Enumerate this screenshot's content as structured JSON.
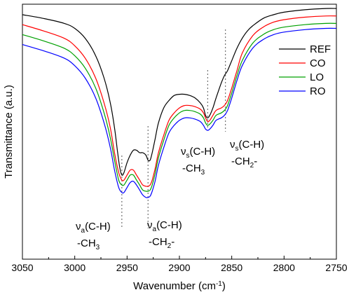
{
  "chart_data": {
    "type": "line",
    "xlabel": "Wavenumber (cm",
    "xlabel_sup": "-1",
    "xlabel_close": ")",
    "ylabel": "Transmittance (a.u.)",
    "xlim": [
      3050,
      2750
    ],
    "x_reversed": true,
    "x_ticks": [
      3050,
      3000,
      2950,
      2900,
      2850,
      2800,
      2750
    ],
    "y_ticks_labeled": false,
    "grid": false,
    "legend_position": "top-right",
    "colors": {
      "REF": "#000000",
      "CO": "#ff0000",
      "LO": "#00a000",
      "RO": "#0000ff"
    },
    "series": [
      {
        "name": "REF",
        "x": [
          3050,
          3030,
          3010,
          3000,
          2990,
          2980,
          2972,
          2966,
          2962,
          2959,
          2957,
          2955,
          2953,
          2950,
          2947,
          2944,
          2941,
          2938,
          2935,
          2932,
          2930,
          2928,
          2926,
          2923,
          2920,
          2915,
          2910,
          2905,
          2900,
          2895,
          2890,
          2885,
          2880,
          2877,
          2875,
          2873,
          2871,
          2868,
          2865,
          2860,
          2857,
          2854,
          2850,
          2845,
          2840,
          2835,
          2830,
          2820,
          2810,
          2800,
          2780,
          2760,
          2750
        ],
        "y": [
          0.955,
          0.94,
          0.92,
          0.9,
          0.86,
          0.79,
          0.7,
          0.6,
          0.5,
          0.4,
          0.34,
          0.31,
          0.32,
          0.36,
          0.39,
          0.41,
          0.41,
          0.4,
          0.4,
          0.39,
          0.37,
          0.37,
          0.4,
          0.46,
          0.52,
          0.58,
          0.61,
          0.63,
          0.635,
          0.635,
          0.63,
          0.62,
          0.6,
          0.58,
          0.55,
          0.54,
          0.55,
          0.58,
          0.62,
          0.68,
          0.71,
          0.73,
          0.77,
          0.82,
          0.86,
          0.89,
          0.91,
          0.94,
          0.955,
          0.965,
          0.975,
          0.98,
          0.98
        ]
      },
      {
        "name": "CO",
        "x": [
          3050,
          3030,
          3010,
          3000,
          2990,
          2980,
          2972,
          2966,
          2962,
          2958,
          2955,
          2953,
          2950,
          2947,
          2944,
          2941,
          2938,
          2935,
          2932,
          2930,
          2928,
          2926,
          2923,
          2920,
          2915,
          2910,
          2905,
          2900,
          2895,
          2890,
          2885,
          2880,
          2877,
          2875,
          2873,
          2871,
          2868,
          2865,
          2860,
          2857,
          2854,
          2850,
          2845,
          2840,
          2830,
          2820,
          2810,
          2800,
          2780,
          2760,
          2750
        ],
        "y": [
          0.915,
          0.89,
          0.86,
          0.83,
          0.78,
          0.7,
          0.6,
          0.5,
          0.4,
          0.32,
          0.29,
          0.29,
          0.31,
          0.33,
          0.33,
          0.31,
          0.29,
          0.27,
          0.265,
          0.265,
          0.27,
          0.29,
          0.34,
          0.4,
          0.47,
          0.53,
          0.56,
          0.58,
          0.59,
          0.59,
          0.585,
          0.575,
          0.56,
          0.54,
          0.525,
          0.53,
          0.55,
          0.57,
          0.58,
          0.59,
          0.61,
          0.66,
          0.73,
          0.8,
          0.87,
          0.905,
          0.925,
          0.935,
          0.945,
          0.95,
          0.95
        ]
      },
      {
        "name": "LO",
        "x": [
          3050,
          3030,
          3010,
          3000,
          2990,
          2980,
          2972,
          2966,
          2962,
          2958,
          2955,
          2953,
          2950,
          2947,
          2944,
          2941,
          2938,
          2935,
          2932,
          2930,
          2928,
          2926,
          2923,
          2920,
          2915,
          2910,
          2905,
          2900,
          2895,
          2890,
          2885,
          2880,
          2877,
          2875,
          2873,
          2871,
          2868,
          2865,
          2860,
          2857,
          2854,
          2850,
          2845,
          2840,
          2830,
          2820,
          2810,
          2800,
          2780,
          2760,
          2750
        ],
        "y": [
          0.875,
          0.85,
          0.82,
          0.79,
          0.74,
          0.66,
          0.56,
          0.46,
          0.37,
          0.29,
          0.27,
          0.27,
          0.29,
          0.31,
          0.31,
          0.29,
          0.27,
          0.25,
          0.245,
          0.245,
          0.25,
          0.27,
          0.32,
          0.38,
          0.45,
          0.51,
          0.54,
          0.56,
          0.57,
          0.57,
          0.565,
          0.555,
          0.54,
          0.52,
          0.51,
          0.515,
          0.53,
          0.55,
          0.56,
          0.57,
          0.59,
          0.64,
          0.71,
          0.77,
          0.84,
          0.875,
          0.895,
          0.905,
          0.915,
          0.92,
          0.92
        ]
      },
      {
        "name": "RO",
        "x": [
          3050,
          3030,
          3010,
          3000,
          2990,
          2980,
          2972,
          2966,
          2962,
          2958,
          2955,
          2953,
          2950,
          2947,
          2944,
          2941,
          2938,
          2935,
          2932,
          2930,
          2928,
          2926,
          2923,
          2920,
          2915,
          2910,
          2905,
          2900,
          2895,
          2890,
          2885,
          2880,
          2877,
          2875,
          2873,
          2871,
          2868,
          2865,
          2860,
          2857,
          2854,
          2850,
          2845,
          2840,
          2830,
          2820,
          2810,
          2800,
          2780,
          2760,
          2750
        ],
        "y": [
          0.835,
          0.81,
          0.78,
          0.75,
          0.7,
          0.62,
          0.52,
          0.42,
          0.33,
          0.26,
          0.24,
          0.24,
          0.26,
          0.28,
          0.285,
          0.27,
          0.25,
          0.23,
          0.22,
          0.22,
          0.225,
          0.245,
          0.29,
          0.35,
          0.42,
          0.48,
          0.51,
          0.53,
          0.54,
          0.54,
          0.535,
          0.525,
          0.51,
          0.495,
          0.49,
          0.495,
          0.51,
          0.53,
          0.54,
          0.55,
          0.57,
          0.62,
          0.69,
          0.75,
          0.82,
          0.855,
          0.875,
          0.885,
          0.895,
          0.9,
          0.9
        ]
      }
    ],
    "annotations": [
      {
        "sym": "ν",
        "sub": "a",
        "text": "(C-H)",
        "line2": "-CH",
        "line2_sub": "3",
        "line2_tail": "",
        "at_x": 2955
      },
      {
        "sym": "ν",
        "sub": "a",
        "text": "(C-H)",
        "line2": "-CH",
        "line2_sub": "2",
        "line2_tail": "-",
        "at_x": 2930
      },
      {
        "sym": "ν",
        "sub": "s",
        "text": "(C-H)",
        "line2": "-CH",
        "line2_sub": "3",
        "line2_tail": "",
        "at_x": 2873
      },
      {
        "sym": "ν",
        "sub": "s",
        "text": "(C-H)",
        "line2": "-CH",
        "line2_sub": "2",
        "line2_tail": "-",
        "at_x": 2856
      }
    ]
  }
}
